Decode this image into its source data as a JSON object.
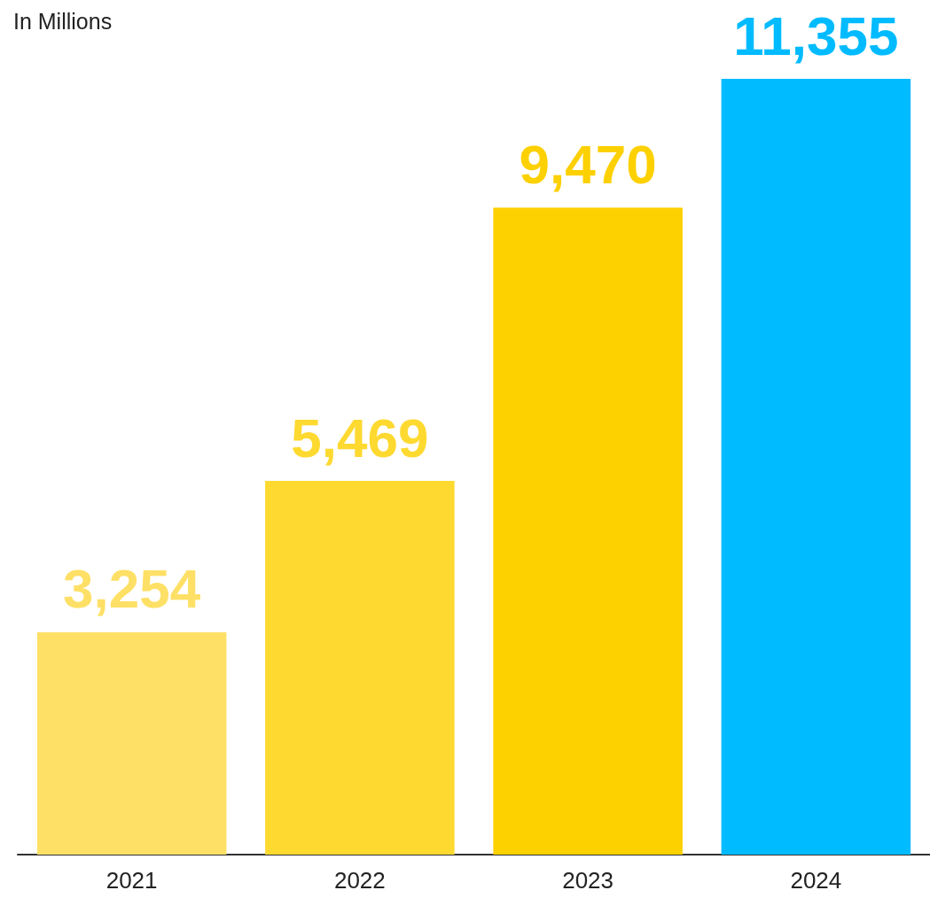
{
  "chart_data": {
    "type": "bar",
    "title": "In Millions",
    "categories": [
      "2021",
      "2022",
      "2023",
      "2024"
    ],
    "values": [
      3254,
      5469,
      9470,
      11355
    ],
    "value_labels": [
      "3,254",
      "5,469",
      "9,470",
      "11,355"
    ],
    "colors": [
      "#fee066",
      "#fed930",
      "#fdd000",
      "#00bbff"
    ]
  }
}
